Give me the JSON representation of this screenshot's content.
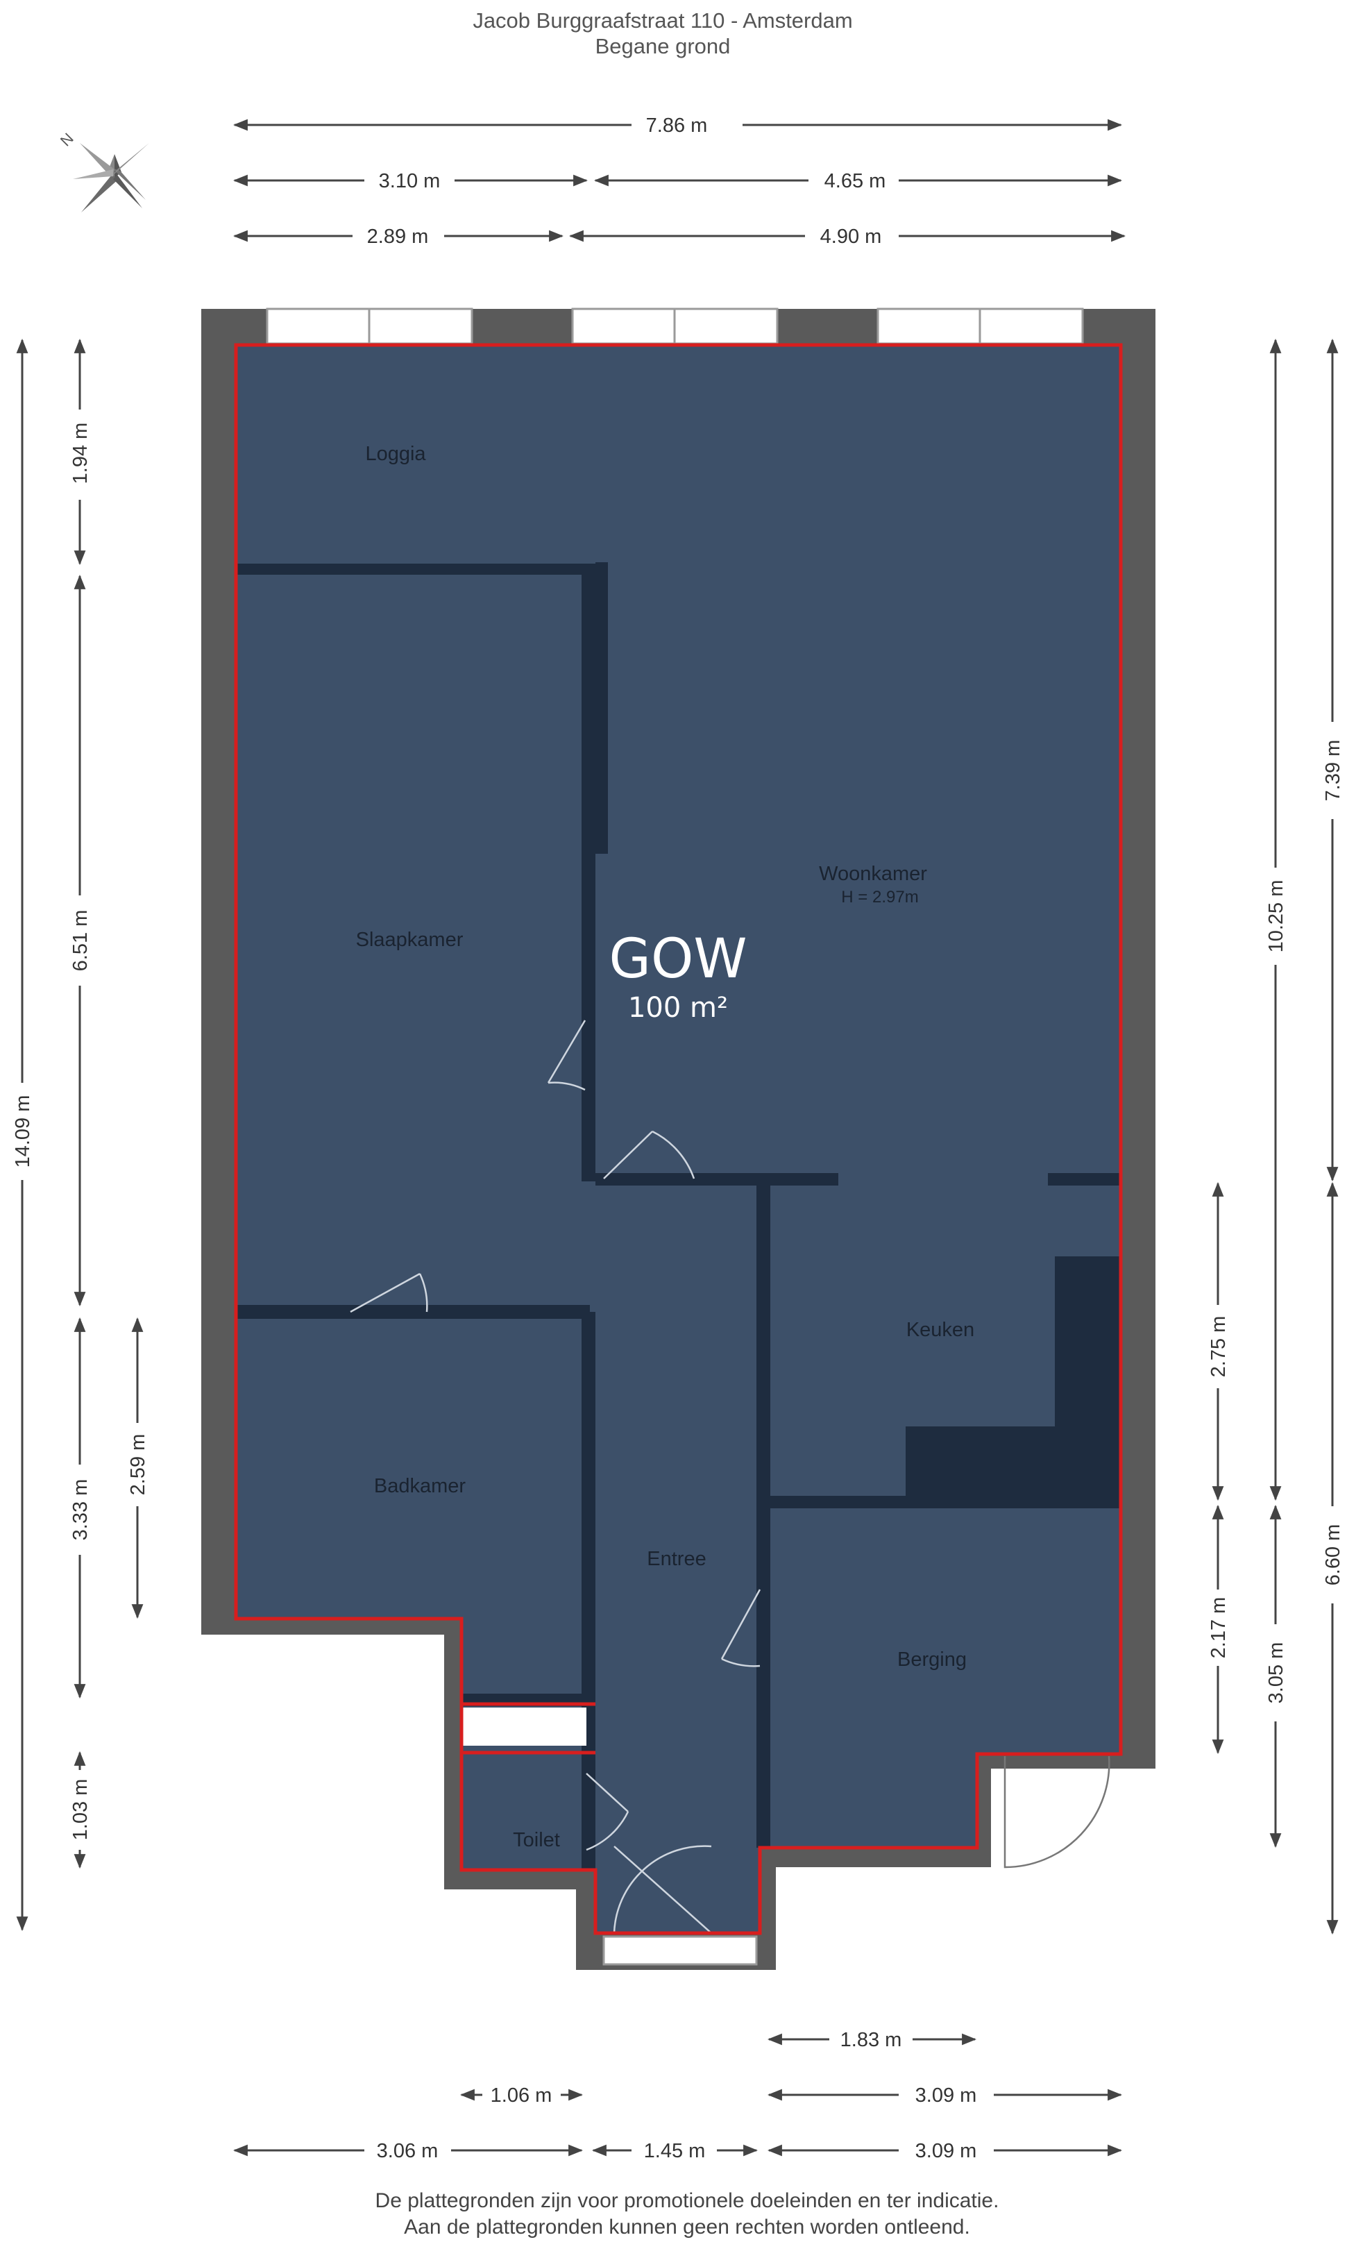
{
  "header": {
    "address": "Jacob Burggraafstraat 110 - Amsterdam",
    "floor": "Begane grond"
  },
  "compass": {
    "north_label": "N"
  },
  "total_area": {
    "code": "GOW",
    "area": "100 m²"
  },
  "rooms": {
    "loggia": {
      "label": "Loggia"
    },
    "slaapkamer": {
      "label": "Slaapkamer"
    },
    "woonkamer": {
      "label": "Woonkamer",
      "height": "H = 2.97m"
    },
    "keuken": {
      "label": "Keuken"
    },
    "badkamer": {
      "label": "Badkamer"
    },
    "entree": {
      "label": "Entree"
    },
    "berging": {
      "label": "Berging"
    },
    "toilet": {
      "label": "Toilet"
    }
  },
  "dimensions": {
    "top_total": "7.86 m",
    "top_row2_left": "3.10 m",
    "top_row2_right": "4.65 m",
    "top_row3_left": "2.89 m",
    "top_row3_right": "4.90 m",
    "left_outer": "14.09 m",
    "left_loggia": "1.94 m",
    "left_slaapkamer": "6.51 m",
    "left_badkamer": "3.33 m",
    "left_badkamer_inner": "2.59 m",
    "left_toilet": "1.03 m",
    "right_keuken": "2.75 m",
    "right_berging": "2.17 m",
    "right_woon": "10.25 m",
    "right_lower": "3.05 m",
    "right_outer_top": "7.39 m",
    "right_outer_bottom": "6.60 m",
    "bottom_row1": "1.83 m",
    "bottom_row2_left": "1.06 m",
    "bottom_row2_right": "3.09 m",
    "bottom_row3_left": "3.06 m",
    "bottom_row3_mid": "1.45 m",
    "bottom_row3_right": "3.09 m"
  },
  "footer": {
    "line1": "De plattegronden zijn voor promotionele doeleinden en ter indicatie.",
    "line2": "Aan de plattegronden kunnen geen rechten worden ontleend."
  },
  "colors": {
    "room_fill": "#3d5069",
    "wall": "#5a5a5a",
    "outline": "#d81e1e"
  }
}
